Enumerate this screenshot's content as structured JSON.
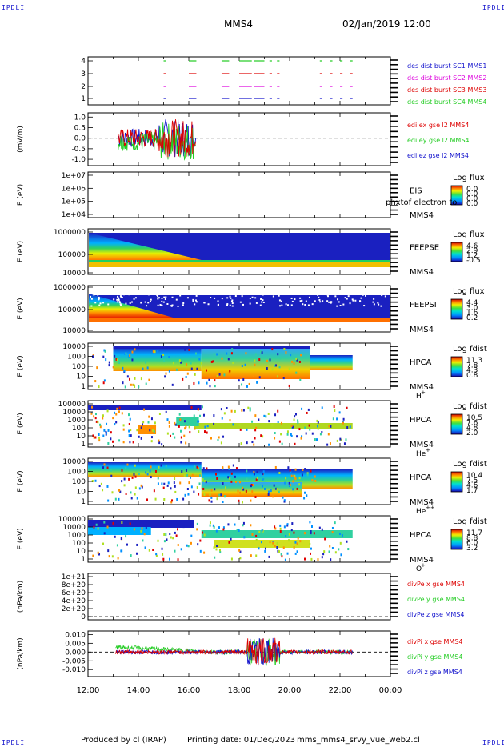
{
  "header": {
    "corner_tl": "IPDLI",
    "corner_tr": "IPDLI",
    "corner_bl": "IPDLI",
    "corner_br": "IPDLI",
    "spacecraft": "MMS4",
    "datetime": "02/Jan/2019 12:00"
  },
  "footer": {
    "produced_by": "Produced by cl (IRAP)",
    "printing_date": "Printing date: 01/Dec/2023",
    "script_name": "mms_mms4_srvy_vue_web2.cl"
  },
  "colors": {
    "red": "#dd0000",
    "green": "#22cc22",
    "blue": "#1111cc",
    "magenta": "#dd00dd"
  },
  "chart_data": [
    {
      "id": "burst",
      "type": "scatter",
      "ylabel": "",
      "ylim": [
        0.5,
        4.5
      ],
      "yticks": [
        "1",
        "2",
        "3",
        "4"
      ],
      "legend": [
        {
          "label": "des dist burst SC1 MMS1",
          "color": "blue"
        },
        {
          "label": "des dist burst SC2 MMS2",
          "color": "magenta"
        },
        {
          "label": "des dist burst SC3 MMS3",
          "color": "red"
        },
        {
          "label": "des dist burst SC4 MMS4",
          "color": "green"
        }
      ],
      "segments_hours": [
        [
          15.0,
          15.1
        ],
        [
          16.0,
          16.3
        ],
        [
          17.3,
          17.6
        ],
        [
          18.0,
          18.5
        ],
        [
          18.6,
          19.0
        ],
        [
          19.2,
          19.3
        ],
        [
          19.5,
          19.6
        ],
        [
          21.2,
          21.3
        ],
        [
          21.6,
          21.7
        ],
        [
          22.0,
          22.1
        ],
        [
          22.4,
          22.5
        ]
      ]
    },
    {
      "id": "edi",
      "type": "line",
      "ylabel": "(mV/m)",
      "ylim": [
        -1.3,
        1.2
      ],
      "yticks": [
        "1.0",
        "0.5",
        "0.0",
        "-0.5",
        "-1.0"
      ],
      "tick_values": [
        1.0,
        0.5,
        0.0,
        -0.5,
        -1.0
      ],
      "legend": [
        {
          "label": "edi ex gse l2 MMS4",
          "color": "red"
        },
        {
          "label": "edi ey gse l2 MMS4",
          "color": "green"
        },
        {
          "label": "edi ez gse l2 MMS4",
          "color": "blue"
        }
      ],
      "time_range_hours": [
        13.2,
        16.3
      ]
    },
    {
      "id": "eis",
      "type": "heatmap",
      "ylabel": "E (eV)",
      "yticks": [
        "1e+07",
        "1e+06",
        "1e+05",
        "1e+04"
      ],
      "instrument": "EIS",
      "spacecraft": "MMS4",
      "overlay_label": "phxtof electron to",
      "cbar_title": "Log flux",
      "cbar_ticks": [
        "0.0",
        "0.0",
        "0.0",
        "0.0"
      ]
    },
    {
      "id": "feepse",
      "type": "heatmap",
      "ylabel": "E (eV)",
      "yticks": [
        "1000000",
        "100000",
        "10000"
      ],
      "instrument": "FEEPSE",
      "spacecraft": "MMS4",
      "cbar_title": "Log flux",
      "cbar_ticks": [
        "4.6",
        "2.9",
        "1.2",
        "-0.5"
      ]
    },
    {
      "id": "feepsi",
      "type": "heatmap",
      "ylabel": "E (eV)",
      "yticks": [
        "1000000",
        "100000",
        "10000"
      ],
      "instrument": "FEEPSI",
      "spacecraft": "MMS4",
      "cbar_title": "Log flux",
      "cbar_ticks": [
        "4.4",
        "3.0",
        "1.6",
        "0.2"
      ]
    },
    {
      "id": "hpca_h",
      "type": "heatmap",
      "ylabel": "E (eV)",
      "yticks": [
        "10000",
        "1000",
        "100",
        "10",
        "1"
      ],
      "instrument": "HPCA",
      "spacecraft": "MMS4",
      "species": "H",
      "charge": "+",
      "cbar_title": "Log fdist",
      "cbar_ticks": [
        "11.3",
        "7.8",
        "4.3",
        "0.8"
      ]
    },
    {
      "id": "hpca_he",
      "type": "heatmap",
      "ylabel": "E (eV)",
      "yticks": [
        "100000",
        "10000",
        "1000",
        "100",
        "10",
        "1"
      ],
      "instrument": "HPCA",
      "spacecraft": "MMS4",
      "species": "He",
      "charge": "+",
      "cbar_title": "Log fdist",
      "cbar_ticks": [
        "10.5",
        "7.6",
        "4.8",
        "2.0"
      ]
    },
    {
      "id": "hpca_hepp",
      "type": "heatmap",
      "ylabel": "E (eV)",
      "yticks": [
        "10000",
        "1000",
        "100",
        "10",
        "1"
      ],
      "instrument": "HPCA",
      "spacecraft": "MMS4",
      "species": "He",
      "charge": "++",
      "cbar_title": "Log fdist",
      "cbar_ticks": [
        "10.4",
        "7.5",
        "4.6",
        "1.7"
      ]
    },
    {
      "id": "hpca_o",
      "type": "heatmap",
      "ylabel": "E (eV)",
      "yticks": [
        "100000",
        "10000",
        "1000",
        "100",
        "10",
        "1"
      ],
      "instrument": "HPCA",
      "spacecraft": "MMS4",
      "species": "O",
      "charge": "+",
      "cbar_title": "Log fdist",
      "cbar_ticks": [
        "11.7",
        "8.8",
        "6.0",
        "3.2"
      ]
    },
    {
      "id": "divpe",
      "type": "line",
      "ylabel": "(nPa/km)",
      "yticks": [
        "1e+21",
        "8e+20",
        "6e+20",
        "4e+20",
        "2e+20",
        "0"
      ],
      "legend": [
        {
          "label": "divPe x gse MMS4",
          "color": "red"
        },
        {
          "label": "divPe y gse MMS4",
          "color": "green"
        },
        {
          "label": "divPe z gse MMS4",
          "color": "blue"
        }
      ]
    },
    {
      "id": "divpi",
      "type": "line",
      "ylabel": "(nPa/km)",
      "ylim": [
        -0.014,
        0.012
      ],
      "yticks": [
        "0.010",
        "0.005",
        "0.000",
        "-0.005",
        "-0.010"
      ],
      "tick_values": [
        0.01,
        0.005,
        0.0,
        -0.005,
        -0.01
      ],
      "legend": [
        {
          "label": "divPi x gse MMS4",
          "color": "red"
        },
        {
          "label": "divPi y gse MMS4",
          "color": "green"
        },
        {
          "label": "divPi z gse MMS4",
          "color": "blue"
        }
      ],
      "time_range_hours": [
        13.1,
        22.5
      ]
    }
  ],
  "xaxis": {
    "range_hours": [
      12,
      24
    ],
    "tick_labels": [
      "12:00",
      "14:00",
      "16:00",
      "18:00",
      "20:00",
      "22:00",
      "00:00"
    ],
    "tick_hours": [
      12,
      14,
      16,
      18,
      20,
      22,
      24
    ]
  }
}
